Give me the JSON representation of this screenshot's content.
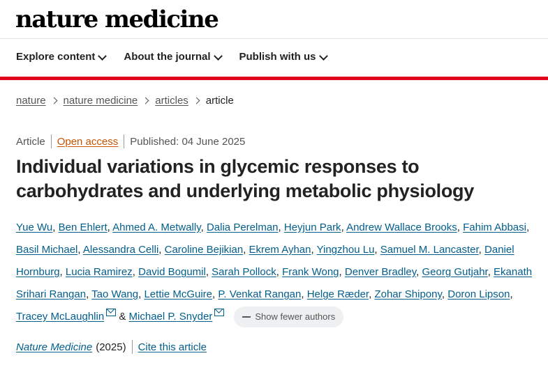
{
  "header": {
    "logo": "nature medicine"
  },
  "nav": {
    "items": [
      {
        "label": "Explore content"
      },
      {
        "label": "About the journal"
      },
      {
        "label": "Publish with us"
      }
    ]
  },
  "breadcrumb": {
    "items": [
      {
        "label": "nature"
      },
      {
        "label": "nature medicine"
      },
      {
        "label": "articles"
      }
    ],
    "current": "article"
  },
  "article": {
    "type": "Article",
    "access": "Open access",
    "published": "Published: 04 June 2025",
    "title": "Individual variations in glycemic responses to carbohydrates and underlying metabolic physiology",
    "authors": [
      "Yue Wu",
      "Ben Ehlert",
      "Ahmed A. Metwally",
      "Dalia Perelman",
      "Heyjun Park",
      "Andrew Wallace Brooks",
      "Fahim Abbasi",
      "Basil Michael",
      "Alessandra Celli",
      "Caroline Bejikian",
      "Ekrem Ayhan",
      "Yingzhou Lu",
      "Samuel M. Lancaster",
      "Daniel Hornburg",
      "Lucia Ramirez",
      "David Bogumil",
      "Sarah Pollock",
      "Frank Wong",
      "Denver Bradley",
      "Georg Gutjahr",
      "Ekanath Srihari Rangan",
      "Tao Wang",
      "Lettie McGuire",
      "P. Venkat Rangan",
      "Helge Ræder",
      "Zohar Shipony",
      "Doron Lipson"
    ],
    "corresponding_authors": [
      "Tracey McLaughlin",
      "Michael P. Snyder"
    ],
    "author_conjunction": "&",
    "show_fewer_label": "Show fewer authors",
    "journal": "Nature Medicine",
    "year": "(2025)",
    "cite_label": "Cite this article"
  },
  "colors": {
    "accent_red": "#e0001b",
    "link_blue": "#025e8d",
    "open_access_orange": "#c65301"
  }
}
